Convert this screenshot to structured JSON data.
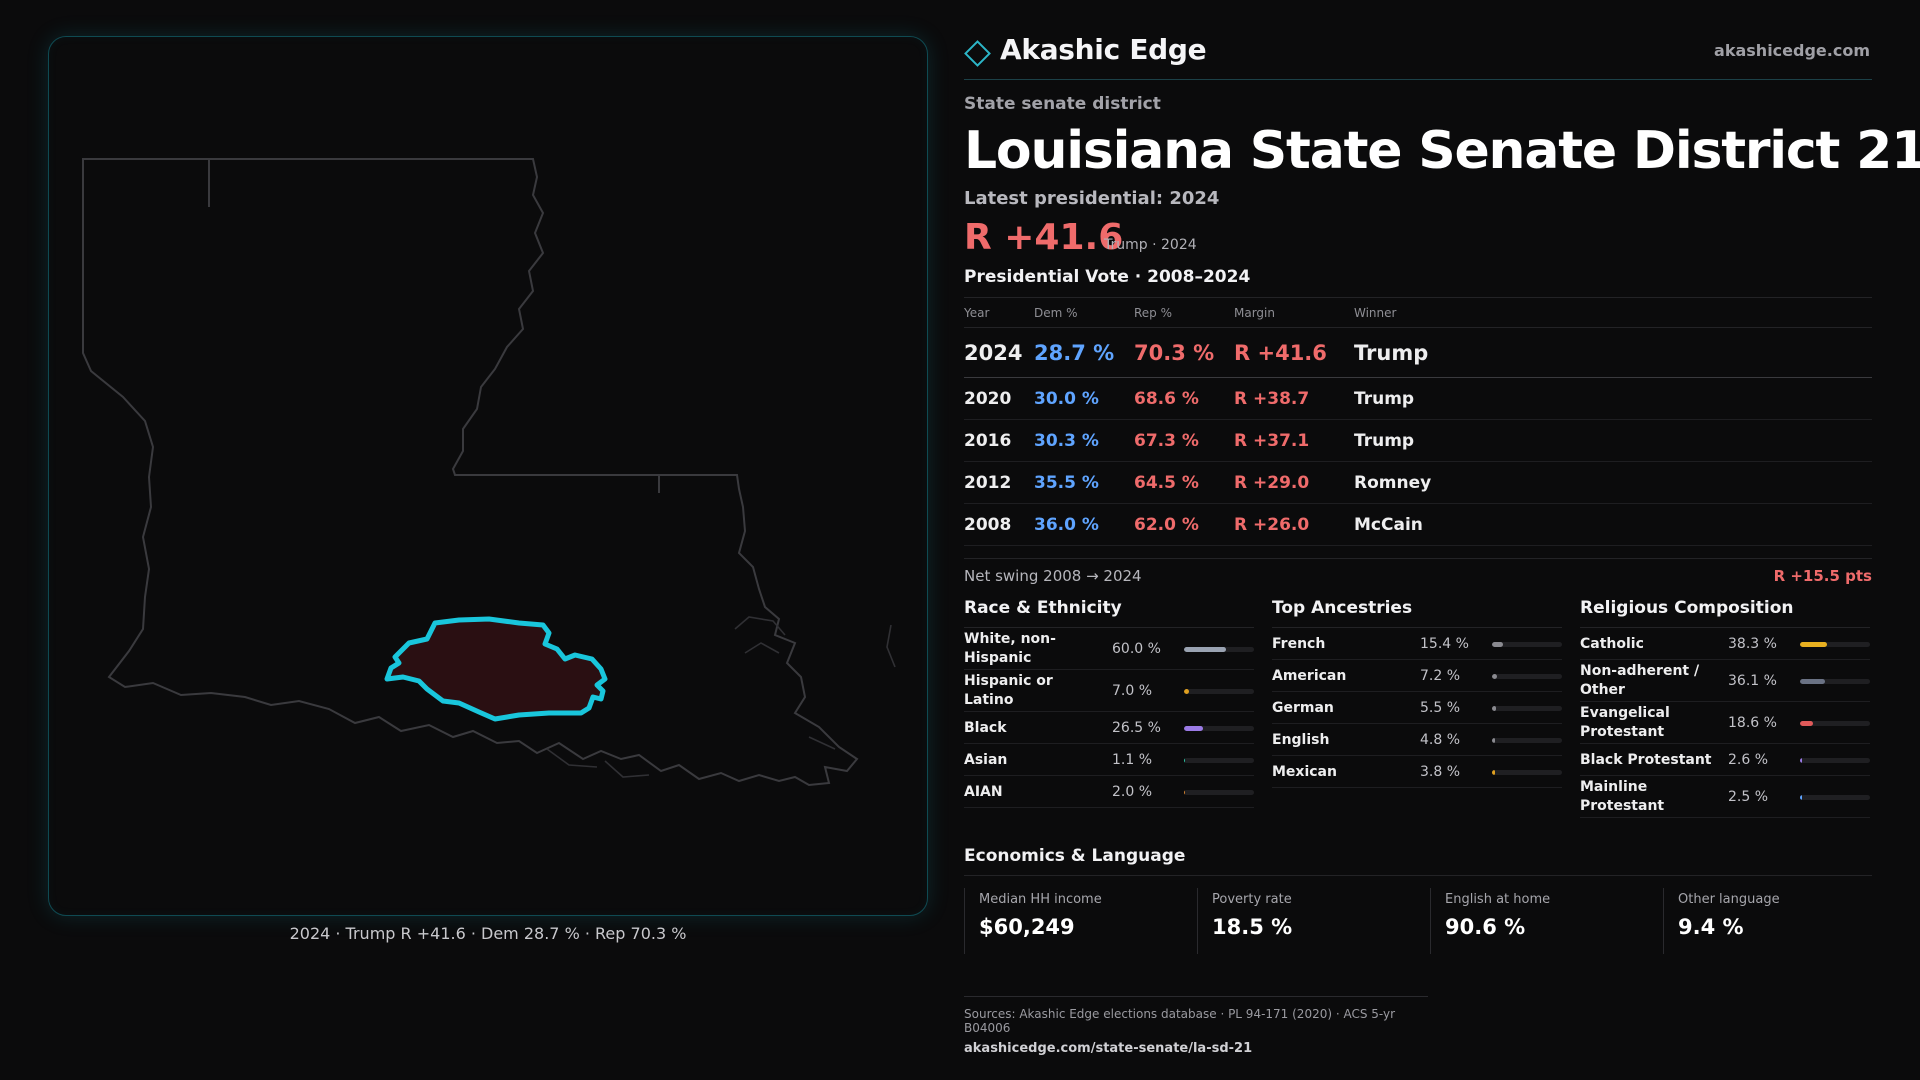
{
  "brand": {
    "name": "Akashic Edge",
    "url": "akashicedge.com"
  },
  "header": {
    "eyebrow": "State senate district",
    "title": "Louisiana State Senate District 21",
    "latest": "Latest presidential: 2024",
    "margin": "R +41.6",
    "margin_sub": "Trump · 2024"
  },
  "map": {
    "caption": "2024 · Trump R +41.6 · Dem 28.7 % · Rep 70.3 %",
    "colors": {
      "state_outline": "#3a3a3e",
      "district_stroke": "#19c6dc",
      "district_fill": "#2a0f12"
    }
  },
  "pres_table": {
    "title": "Presidential Vote · 2008–2024",
    "headers": [
      "Year",
      "Dem %",
      "Rep %",
      "Margin",
      "Winner"
    ],
    "rows": [
      {
        "year": "2024",
        "dem": "28.7 %",
        "rep": "70.3 %",
        "margin": "R +41.6",
        "winner": "Trump"
      },
      {
        "year": "2020",
        "dem": "30.0 %",
        "rep": "68.6 %",
        "margin": "R +38.7",
        "winner": "Trump"
      },
      {
        "year": "2016",
        "dem": "30.3 %",
        "rep": "67.3 %",
        "margin": "R +37.1",
        "winner": "Trump"
      },
      {
        "year": "2012",
        "dem": "35.5 %",
        "rep": "64.5 %",
        "margin": "R +29.0",
        "winner": "Romney"
      },
      {
        "year": "2008",
        "dem": "36.0 %",
        "rep": "62.0 %",
        "margin": "R +26.0",
        "winner": "McCain"
      }
    ],
    "colors": {
      "dem": "#5fa4ff",
      "rep": "#ef6b6b"
    }
  },
  "swing": {
    "label": "Net swing 2008 → 2024",
    "value": "R +15.5 pts"
  },
  "race": {
    "title": "Race & Ethnicity",
    "rows": [
      {
        "label": "White, non-Hispanic",
        "value": "60.0 %",
        "pct": 60.0,
        "color": "#9aa3b2"
      },
      {
        "label": "Hispanic or Latino",
        "value": "7.0 %",
        "pct": 7.0,
        "color": "#e0a020"
      },
      {
        "label": "Black",
        "value": "26.5 %",
        "pct": 26.5,
        "color": "#9b7be6"
      },
      {
        "label": "Asian",
        "value": "1.1 %",
        "pct": 1.1,
        "color": "#2cc0a0"
      },
      {
        "label": "AIAN",
        "value": "2.0 %",
        "pct": 2.0,
        "color": "#d08030"
      }
    ]
  },
  "ancestry": {
    "title": "Top Ancestries",
    "rows": [
      {
        "label": "French",
        "value": "15.4 %",
        "pct": 15.4,
        "color": "#8a8a90"
      },
      {
        "label": "American",
        "value": "7.2 %",
        "pct": 7.2,
        "color": "#8a8a90"
      },
      {
        "label": "German",
        "value": "5.5 %",
        "pct": 5.5,
        "color": "#8a8a90"
      },
      {
        "label": "English",
        "value": "4.8 %",
        "pct": 4.8,
        "color": "#8a8a90"
      },
      {
        "label": "Mexican",
        "value": "3.8 %",
        "pct": 3.8,
        "color": "#e0a020"
      }
    ]
  },
  "religion": {
    "title": "Religious Composition",
    "rows": [
      {
        "label": "Catholic",
        "value": "38.3 %",
        "pct": 38.3,
        "color": "#e8b020"
      },
      {
        "label": "Non-adherent / Other",
        "value": "36.1 %",
        "pct": 36.1,
        "color": "#6a7284"
      },
      {
        "label": "Evangelical Protestant",
        "value": "18.6 %",
        "pct": 18.6,
        "color": "#e05a5a"
      },
      {
        "label": "Black Protestant",
        "value": "2.6 %",
        "pct": 2.6,
        "color": "#9b7be6"
      },
      {
        "label": "Mainline Protestant",
        "value": "2.5 %",
        "pct": 2.5,
        "color": "#5fa4ff"
      }
    ]
  },
  "economics": {
    "title": "Economics & Language",
    "cells": [
      {
        "label": "Median HH income",
        "value": "$60,249"
      },
      {
        "label": "Poverty rate",
        "value": "18.5 %"
      },
      {
        "label": "English at home",
        "value": "90.6 %"
      },
      {
        "label": "Other language",
        "value": "9.4 %"
      }
    ]
  },
  "footer": {
    "sources": "Sources: Akashic Edge elections database · PL 94-171 (2020) · ACS 5-yr B04006",
    "url": "akashicedge.com/state-senate/la-sd-21"
  }
}
